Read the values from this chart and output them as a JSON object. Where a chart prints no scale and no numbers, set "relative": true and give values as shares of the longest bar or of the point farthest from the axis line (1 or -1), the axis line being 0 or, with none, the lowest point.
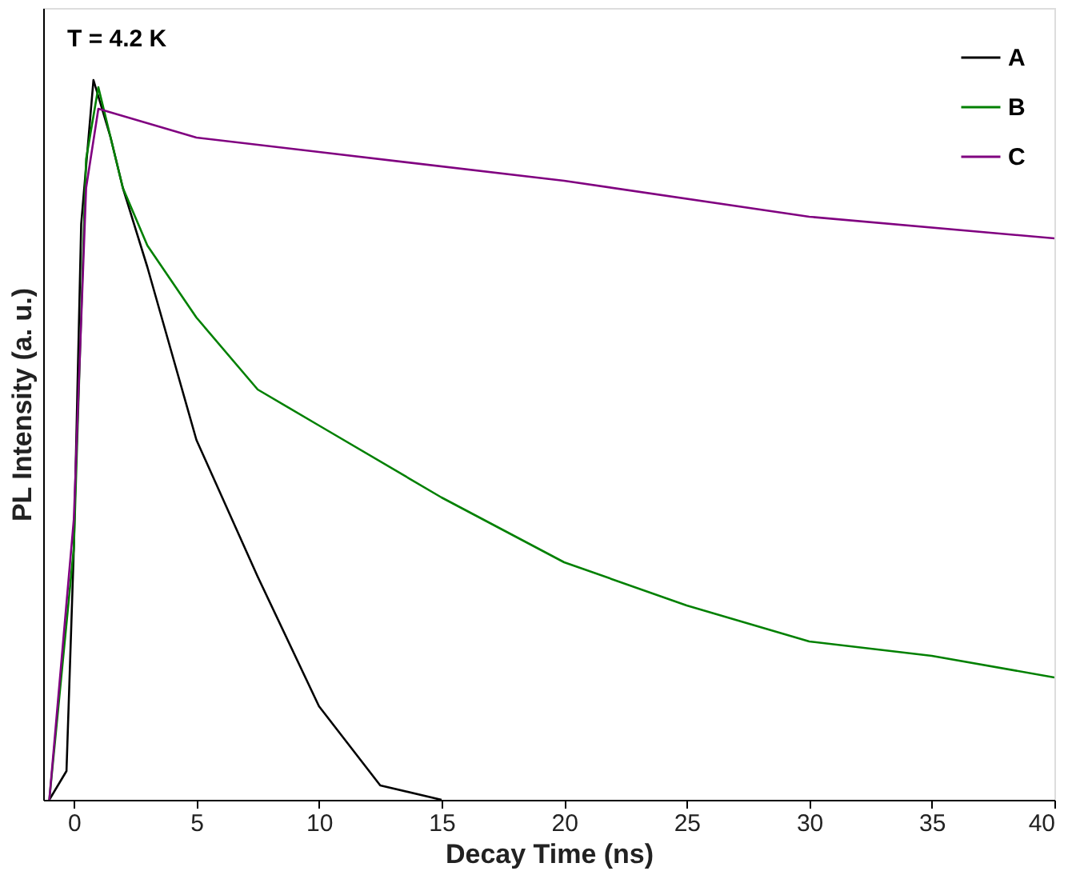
{
  "chart_data": {
    "type": "line",
    "xlabel": "Decay Time (ns)",
    "ylabel": "PL Intensity (a. u.)",
    "annotations": [
      "T = 4.2 K"
    ],
    "relative": true,
    "tick_labels": "x",
    "legend": "top right",
    "grid": false,
    "marker": "none",
    "line_style": "solid",
    "xlim": [
      -1.25,
      40
    ],
    "xticks": [
      0,
      5,
      10,
      15,
      20,
      25,
      30,
      35,
      40
    ],
    "series": [
      {
        "name": "A",
        "color": "#000000",
        "x": [
          -1.0,
          -0.3,
          0,
          0.3,
          0.8,
          1.5,
          2,
          3,
          4,
          5,
          7.5,
          10,
          12.5,
          15
        ],
        "values": [
          0,
          0.04,
          0.35,
          0.8,
          1.0,
          0.92,
          0.85,
          0.74,
          0.62,
          0.5,
          0.31,
          0.13,
          0.02,
          0
        ]
      },
      {
        "name": "B",
        "color": "#008000",
        "x": [
          -1.0,
          0,
          0.5,
          1,
          2,
          3,
          5,
          7.5,
          10,
          15,
          20,
          25,
          30,
          35,
          40
        ],
        "values": [
          0,
          0.35,
          0.89,
          0.99,
          0.85,
          0.77,
          0.67,
          0.57,
          0.52,
          0.42,
          0.33,
          0.27,
          0.22,
          0.2,
          0.17
        ]
      },
      {
        "name": "C",
        "color": "#800080",
        "x": [
          -1.0,
          0,
          0.5,
          1,
          2,
          5,
          10,
          20,
          30,
          40
        ],
        "values": [
          0,
          0.39,
          0.85,
          0.96,
          0.95,
          0.92,
          0.9,
          0.86,
          0.81,
          0.78
        ]
      }
    ]
  }
}
